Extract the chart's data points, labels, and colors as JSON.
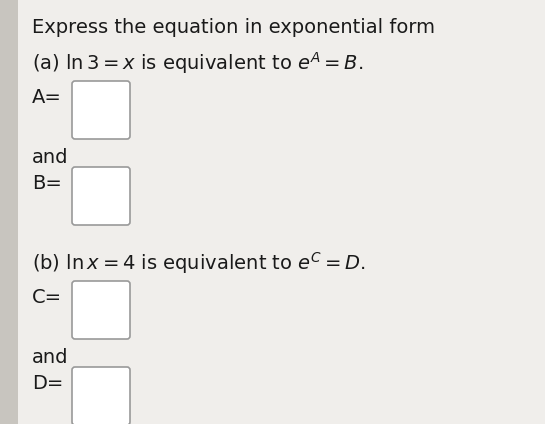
{
  "background_color": "#c8c5bf",
  "card_color": "#f0eeeb",
  "text_color": "#1a1a1a",
  "title_line1": "Express the equation in exponential form",
  "line_a": "(a) $\\mathbf{\\ln}$ $\\mathbf{3}$ $= x$ is equivalent to $e^A = B$.",
  "label_A": "A=",
  "label_and1": "and",
  "label_B": "B=",
  "line_b": "(b) $\\ln x = 4$ is equivalent to $e^C = D$.",
  "label_C": "C=",
  "label_and2": "and",
  "label_D": "D=",
  "font_size": 14.0
}
